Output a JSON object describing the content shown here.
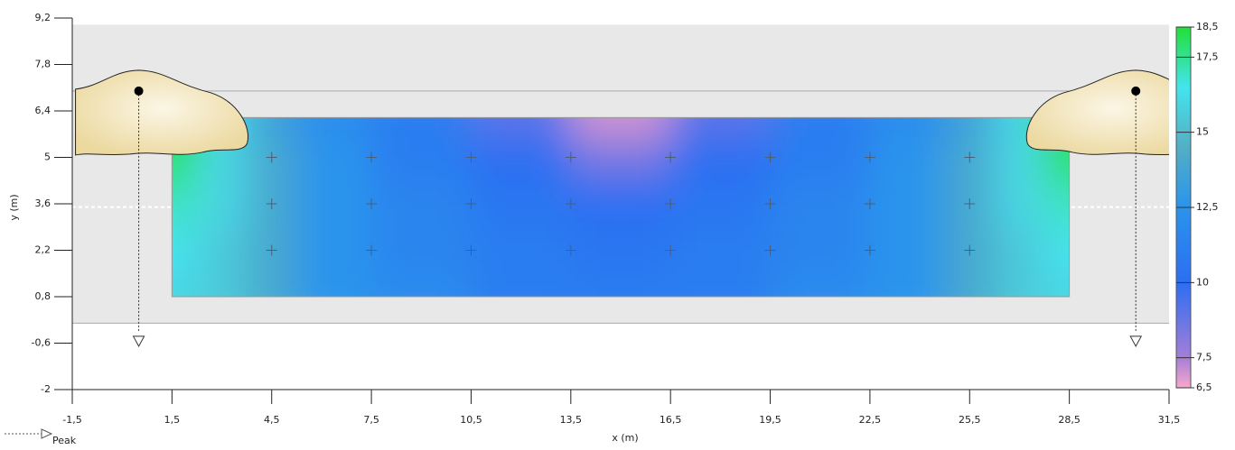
{
  "chart_data": {
    "type": "heatmap",
    "xlabel": "x (m)",
    "ylabel": "y (m)",
    "xlim": [
      -1.5,
      31.5
    ],
    "ylim": [
      -2,
      9.2
    ],
    "xticks": [
      {
        "value": -1.5,
        "label": "-1,5"
      },
      {
        "value": 1.5,
        "label": "1,5"
      },
      {
        "value": 4.5,
        "label": "4,5"
      },
      {
        "value": 7.5,
        "label": "7,5"
      },
      {
        "value": 10.5,
        "label": "10,5"
      },
      {
        "value": 13.5,
        "label": "13,5"
      },
      {
        "value": 16.5,
        "label": "16,5"
      },
      {
        "value": 19.5,
        "label": "19,5"
      },
      {
        "value": 22.5,
        "label": "22,5"
      },
      {
        "value": 25.5,
        "label": "25,5"
      },
      {
        "value": 28.5,
        "label": "28,5"
      },
      {
        "value": 31.5,
        "label": "31,5"
      }
    ],
    "yticks": [
      {
        "value": 9.2,
        "label": "9,2"
      },
      {
        "value": 7.8,
        "label": "7,8"
      },
      {
        "value": 6.4,
        "label": "6,4"
      },
      {
        "value": 5,
        "label": "5"
      },
      {
        "value": 3.6,
        "label": "3,6"
      },
      {
        "value": 2.2,
        "label": "2,2"
      },
      {
        "value": 0.8,
        "label": "0,8"
      },
      {
        "value": -0.6,
        "label": "-0,6"
      },
      {
        "value": -2,
        "label": "-2"
      }
    ],
    "background_band": [
      0,
      9
    ],
    "ceiling_line": 7,
    "section_line": 3.5,
    "area": {
      "x": [
        1.5,
        28.5
      ],
      "y": [
        0.8,
        6.2
      ]
    },
    "grid_x": [
      1.5,
      3,
      4.5,
      6,
      9,
      12,
      15,
      18,
      21,
      24,
      25.5,
      27,
      28.5
    ],
    "grid_y": [
      6.2,
      5,
      3.6,
      2.2,
      0.8
    ],
    "z": [
      [
        18.5,
        16,
        13.5,
        12,
        11,
        9,
        7,
        9,
        11,
        12,
        13.5,
        16,
        18.5
      ],
      [
        18,
        16,
        14,
        12.5,
        11,
        10,
        8.5,
        10,
        11,
        12.5,
        14,
        16,
        18
      ],
      [
        17,
        16,
        14,
        12.5,
        11.5,
        10.5,
        10,
        10.5,
        11.5,
        12.5,
        14,
        16,
        17
      ],
      [
        16.5,
        15.5,
        14,
        12.5,
        11.5,
        11,
        10.5,
        11,
        11.5,
        12.5,
        14,
        15.5,
        16.5
      ],
      [
        16,
        15.5,
        14,
        12.5,
        12,
        11,
        11,
        11,
        12,
        12.5,
        14,
        15.5,
        16
      ]
    ],
    "points": {
      "x": [
        4.5,
        7.5,
        10.5,
        13.5,
        16.5,
        19.5,
        22.5,
        25.5
      ],
      "y": [
        5,
        3.6,
        2.2
      ]
    },
    "luminaires": [
      {
        "x": 0.5,
        "y": 7
      },
      {
        "x": 30.5,
        "y": 7
      }
    ],
    "legend": "Peak",
    "clim": [
      6.5,
      18.5
    ],
    "cticks": [
      {
        "value": 18.5,
        "label": "18,5"
      },
      {
        "value": 17.5,
        "label": "17,5"
      },
      15,
      {
        "value": 12.5,
        "label": "12,5"
      },
      10,
      {
        "value": 7.5,
        "label": "7,5"
      },
      {
        "value": 6.5,
        "label": "6,5"
      }
    ],
    "colorscale": [
      [
        6.5,
        "#f8a8cc"
      ],
      [
        7.5,
        "#a47ed8"
      ],
      [
        10,
        "#2c6ef2"
      ],
      [
        12.5,
        "#2a94ec"
      ],
      [
        14.5,
        "#54aec4"
      ],
      [
        16.5,
        "#44e4ee"
      ],
      [
        18.5,
        "#22e036"
      ]
    ]
  }
}
